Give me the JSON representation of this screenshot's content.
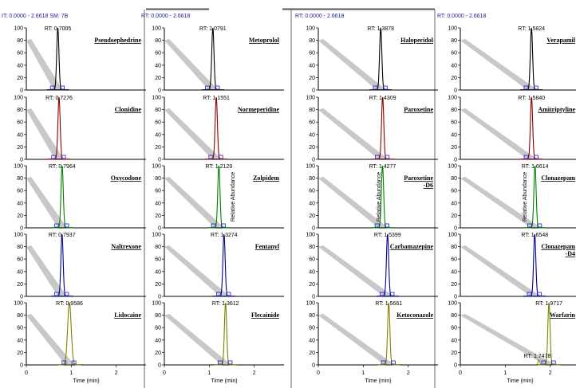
{
  "chart_data": {
    "type": "line",
    "header": "RT: 0.0000 - 2.6618",
    "first_header": "IT: 0.0000 - 2.6618  SM: 7B",
    "xlabel": "Time (min)",
    "ylabel": "Relative Abundance",
    "xticks": [
      "0",
      "1",
      "2"
    ],
    "yticks": [
      "0",
      "20",
      "40",
      "60",
      "80",
      "100"
    ],
    "xlim": [
      0,
      2.6618
    ],
    "ylim": [
      0,
      100
    ],
    "columns": [
      {
        "panels": [
          {
            "compound": [
              "Pseudoephedrine"
            ],
            "rt_label": "RT: 0.7005",
            "rt": 0.7005,
            "color": "#000000",
            "width": 0.05
          },
          {
            "compound": [
              "Clonidine"
            ],
            "rt_label": "RT: 0.7276",
            "rt": 0.7276,
            "color": "#8b0000",
            "width": 0.05
          },
          {
            "compound": [
              "Oxycodone"
            ],
            "rt_label": "RT: 0.7964",
            "rt": 0.7964,
            "color": "#008000",
            "width": 0.05
          },
          {
            "compound": [
              "Naltrexone"
            ],
            "rt_label": "RT: 0.7937",
            "rt": 0.7937,
            "color": "#00008b",
            "width": 0.05
          },
          {
            "compound": [
              "Lidocaine"
            ],
            "rt_label": "RT: 0.9586",
            "rt": 0.9586,
            "color": "#808000",
            "width": 0.08
          }
        ]
      },
      {
        "panels": [
          {
            "compound": [
              "Metoprolol"
            ],
            "rt_label": "RT: 1.0791",
            "rt": 1.0791,
            "color": "#000000",
            "width": 0.05
          },
          {
            "compound": [
              "Normeperidine"
            ],
            "rt_label": "RT: 1.1551",
            "rt": 1.1551,
            "color": "#8b0000",
            "width": 0.05
          },
          {
            "compound": [
              "Zolpidem"
            ],
            "rt_label": "RT: 1.2129",
            "rt": 1.2129,
            "color": "#008000",
            "width": 0.05
          },
          {
            "compound": [
              "Fentanyl"
            ],
            "rt_label": "RT: 1.3274",
            "rt": 1.3274,
            "color": "#00008b",
            "width": 0.05
          },
          {
            "compound": [
              "Flecainide"
            ],
            "rt_label": "RT: 1.3612",
            "rt": 1.3612,
            "color": "#808000",
            "width": 0.05
          }
        ]
      },
      {
        "panels": [
          {
            "compound": [
              "Haloperidol"
            ],
            "rt_label": "RT: 1.3878",
            "rt": 1.3878,
            "color": "#000000",
            "width": 0.05
          },
          {
            "compound": [
              "Paroxetine"
            ],
            "rt_label": "RT: 1.4309",
            "rt": 1.4309,
            "color": "#8b0000",
            "width": 0.05
          },
          {
            "compound": [
              "Paroxetine",
              "-D6"
            ],
            "rt_label": "RT: 1.4277",
            "rt": 1.4277,
            "color": "#008000",
            "width": 0.05
          },
          {
            "compound": [
              "Carbamazepine"
            ],
            "rt_label": "RT: 1.5399",
            "rt": 1.5399,
            "color": "#00008b",
            "width": 0.05
          },
          {
            "compound": [
              "Ketoconazole"
            ],
            "rt_label": "RT: 1.5661",
            "rt": 1.5661,
            "color": "#808000",
            "width": 0.05
          }
        ]
      },
      {
        "panels": [
          {
            "compound": [
              "Verapamil"
            ],
            "rt_label": "RT: 1.5824",
            "rt": 1.5824,
            "color": "#000000",
            "width": 0.05
          },
          {
            "compound": [
              "Amitriptyline"
            ],
            "rt_label": "RT: 1.5840",
            "rt": 1.584,
            "color": "#8b0000",
            "width": 0.05
          },
          {
            "compound": [
              "Clonazepam"
            ],
            "rt_label": "RT: 1.6614",
            "rt": 1.6614,
            "color": "#008000",
            "width": 0.05
          },
          {
            "compound": [
              "Clonazepam",
              "-D4"
            ],
            "rt_label": "RT: 1.6548",
            "rt": 1.6548,
            "color": "#00008b",
            "width": 0.05
          },
          {
            "compound": [
              "Warfarin"
            ],
            "rt_label": "RT: 1.9717",
            "rt": 1.9717,
            "color": "#808000",
            "width": 0.05,
            "extra_peak": {
              "rt_label": "RT: 1.7478",
              "rt": 1.7478
            }
          }
        ]
      }
    ]
  }
}
